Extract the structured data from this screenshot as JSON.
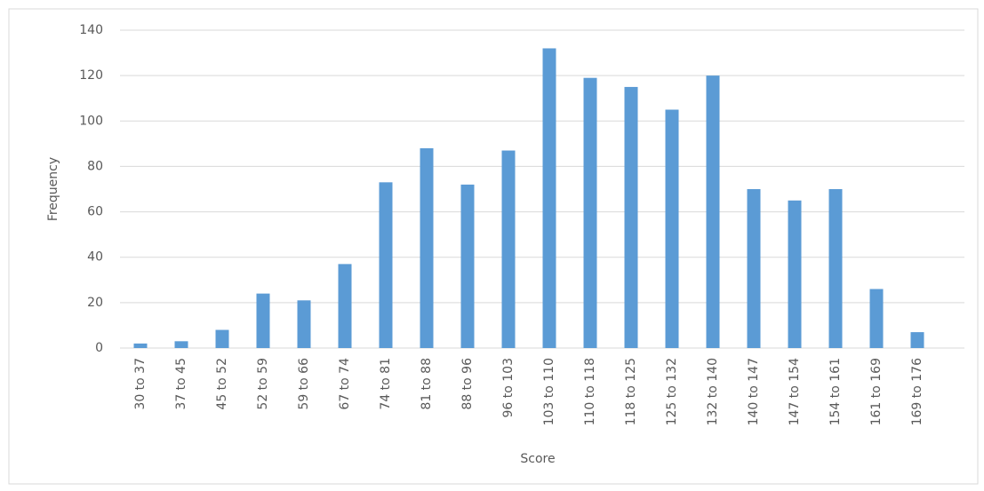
{
  "chart_data": {
    "type": "bar",
    "x_label": "Score",
    "y_label": "Frequency",
    "categories": [
      "30 to 37",
      "37 to 45",
      "45 to 52",
      "52 to 59",
      "59 to 66",
      "67 to 74",
      "74 to 81",
      "81 to 88",
      "88 to 96",
      "96 to 103",
      "103 to 110",
      "110 to 118",
      "118 to 125",
      "125 to 132",
      "132 to 140",
      "140 to 147",
      "147 to 154",
      "154 to 161",
      "161 to 169",
      "169 to 176"
    ],
    "values": [
      2,
      3,
      8,
      24,
      21,
      37,
      73,
      88,
      72,
      87,
      132,
      119,
      115,
      105,
      120,
      70,
      65,
      70,
      26,
      7
    ],
    "color": "#5b9bd5",
    "ylim": [
      0,
      140
    ],
    "yticks": [
      0,
      20,
      40,
      60,
      80,
      100,
      120,
      140
    ],
    "grid": true
  }
}
